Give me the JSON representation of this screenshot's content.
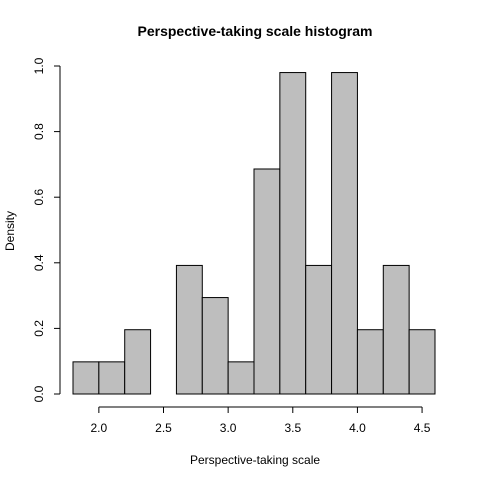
{
  "chart_data": {
    "type": "bar",
    "title": "Perspective-taking scale histogram",
    "xlabel": "Perspective-taking scale",
    "ylabel": "Density",
    "bins": [
      {
        "x0": 1.8,
        "x1": 2.0,
        "value": 0.098
      },
      {
        "x0": 2.0,
        "x1": 2.2,
        "value": 0.098
      },
      {
        "x0": 2.2,
        "x1": 2.4,
        "value": 0.196
      },
      {
        "x0": 2.4,
        "x1": 2.6,
        "value": 0.0
      },
      {
        "x0": 2.6,
        "x1": 2.8,
        "value": 0.392
      },
      {
        "x0": 2.8,
        "x1": 3.0,
        "value": 0.294
      },
      {
        "x0": 3.0,
        "x1": 3.2,
        "value": 0.098
      },
      {
        "x0": 3.2,
        "x1": 3.4,
        "value": 0.686
      },
      {
        "x0": 3.4,
        "x1": 3.6,
        "value": 0.98
      },
      {
        "x0": 3.6,
        "x1": 3.8,
        "value": 0.392
      },
      {
        "x0": 3.8,
        "x1": 4.0,
        "value": 0.98
      },
      {
        "x0": 4.0,
        "x1": 4.2,
        "value": 0.196
      },
      {
        "x0": 4.2,
        "x1": 4.4,
        "value": 0.392
      },
      {
        "x0": 4.4,
        "x1": 4.6,
        "value": 0.196
      }
    ],
    "xticks": [
      "2.0",
      "2.5",
      "3.0",
      "3.5",
      "4.0",
      "4.5"
    ],
    "yticks": [
      "0.0",
      "0.2",
      "0.4",
      "0.6",
      "0.8",
      "1.0"
    ],
    "xlim": [
      1.8,
      4.6
    ],
    "ylim": [
      0,
      1.0
    ],
    "grid": false,
    "bar_color": "#bebebe"
  }
}
